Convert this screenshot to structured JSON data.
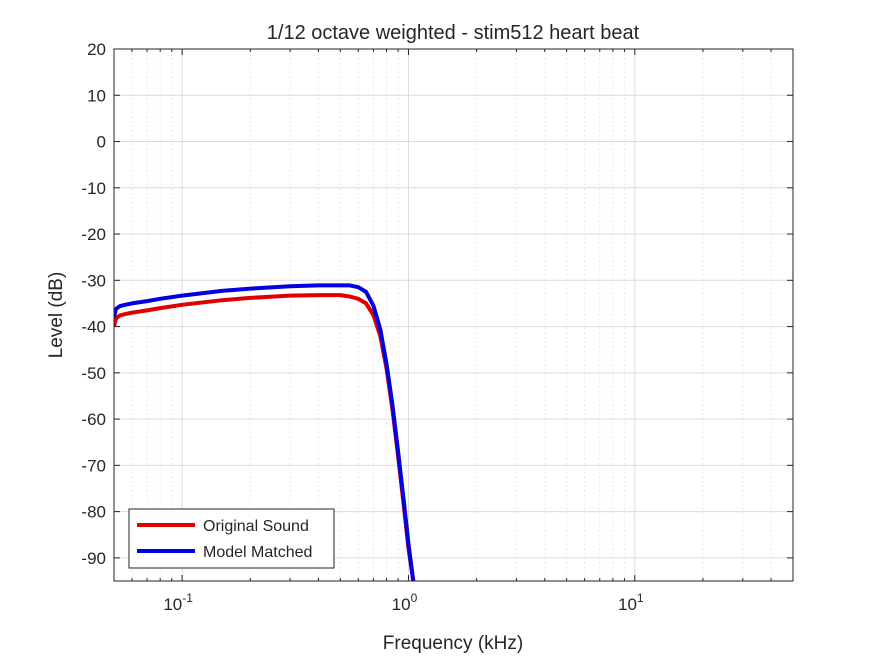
{
  "chart_data": {
    "type": "line",
    "title": "1/12 octave weighted - stim512 heart beat",
    "xlabel": "Frequency (kHz)",
    "ylabel": "Level (dB)",
    "x_scale": "log",
    "xlim": [
      0.05,
      50
    ],
    "ylim": [
      -95,
      20
    ],
    "grid": "on (major and minor)",
    "legend_location": "bottom-left",
    "x_ticks": [
      {
        "value": 0.1,
        "base": "10",
        "exp": "-1"
      },
      {
        "value": 1,
        "base": "10",
        "exp": "0"
      },
      {
        "value": 10,
        "base": "10",
        "exp": "1"
      }
    ],
    "y_ticks": [
      20,
      10,
      0,
      -10,
      -20,
      -30,
      -40,
      -50,
      -60,
      -70,
      -80,
      -90
    ],
    "series": [
      {
        "name": "Original Sound",
        "color": "#e00000",
        "x": [
          0.05,
          0.051,
          0.053,
          0.056,
          0.06,
          0.07,
          0.08,
          0.1,
          0.15,
          0.2,
          0.3,
          0.4,
          0.5,
          0.55,
          0.6,
          0.65,
          0.7,
          0.75,
          0.8,
          0.85,
          0.9,
          0.95,
          1.0,
          1.05
        ],
        "y": [
          -40,
          -38.3,
          -37.6,
          -37.3,
          -37.0,
          -36.5,
          -36.0,
          -35.3,
          -34.3,
          -33.8,
          -33.3,
          -33.2,
          -33.2,
          -33.5,
          -34.0,
          -35.0,
          -37.5,
          -42,
          -49,
          -58,
          -68,
          -78,
          -88,
          -95
        ]
      },
      {
        "name": "Model Matched",
        "color": "#0000e0",
        "x": [
          0.05,
          0.051,
          0.053,
          0.056,
          0.06,
          0.07,
          0.08,
          0.1,
          0.15,
          0.2,
          0.3,
          0.4,
          0.5,
          0.55,
          0.6,
          0.65,
          0.7,
          0.75,
          0.8,
          0.85,
          0.9,
          0.95,
          1.0,
          1.05
        ],
        "y": [
          -38,
          -36.2,
          -35.6,
          -35.3,
          -35.0,
          -34.5,
          -34.0,
          -33.3,
          -32.3,
          -31.8,
          -31.3,
          -31.1,
          -31.1,
          -31.1,
          -31.5,
          -32.5,
          -35.5,
          -40.5,
          -48,
          -57,
          -67,
          -77,
          -87,
          -95
        ]
      }
    ]
  }
}
